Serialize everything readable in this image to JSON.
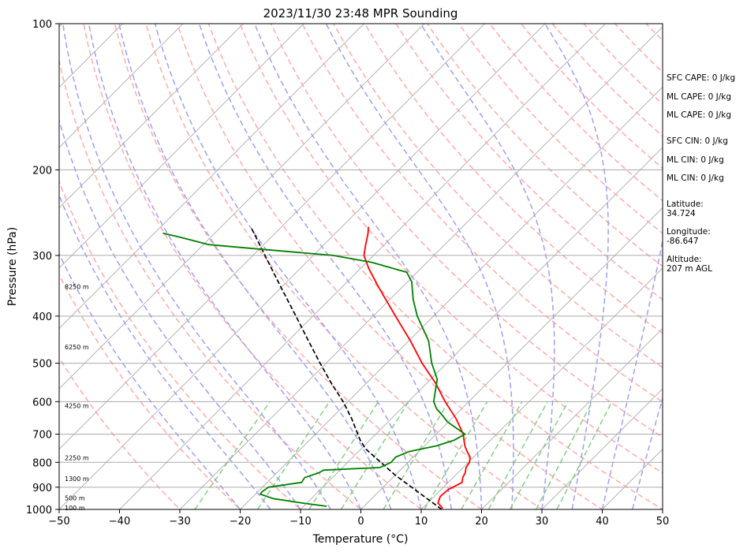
{
  "chart_data": {
    "type": "line",
    "title": "2023/11/30 23:48 MPR Sounding",
    "xlabel": "Temperature (°C)",
    "ylabel": "Pressure (hPa)",
    "xlim": [
      -50,
      50
    ],
    "ylim": [
      1000,
      100
    ],
    "y_scale": "log",
    "x_ticks": [
      "−50",
      "−40",
      "−30",
      "−20",
      "−10",
      "0",
      "10",
      "20",
      "30",
      "40",
      "50"
    ],
    "y_ticks": [
      "100",
      "200",
      "300",
      "400",
      "500",
      "600",
      "700",
      "800",
      "900",
      "1000"
    ],
    "grid": "horizontal isobars + skewed isotherms",
    "colors": {
      "temperature": "#ff0000",
      "dewpoint": "#008000",
      "parcel": "#000000",
      "dry_adiabats": "#ffaaaa",
      "moist_adiabats": "#9f9ff0",
      "mixing_ratio": "#88cc88",
      "isotherms": "#aaaaaa"
    },
    "series": [
      {
        "key": "temperature",
        "pressure": [
          995,
          970,
          940,
          910,
          880,
          860,
          840,
          820,
          800,
          780,
          760,
          740,
          720,
          700,
          650,
          600,
          550,
          500,
          450,
          400,
          350,
          320,
          300,
          285,
          270,
          262
        ],
        "values": [
          13.4,
          11.7,
          11.0,
          11.2,
          12.3,
          11.6,
          11.2,
          10.5,
          10.2,
          9.4,
          8.0,
          6.7,
          5.6,
          4.5,
          0.7,
          -3.9,
          -8.5,
          -14.1,
          -19.7,
          -26.3,
          -33.7,
          -38.5,
          -41.6,
          -43.1,
          -44.6,
          -45.6
        ]
      },
      {
        "key": "dewpoint",
        "pressure": [
          985,
          970,
          950,
          930,
          920,
          900,
          880,
          860,
          840,
          830,
          820,
          800,
          780,
          760,
          740,
          720,
          700,
          680,
          660,
          640,
          620,
          600,
          570,
          540,
          500,
          450,
          400,
          370,
          340,
          325,
          310,
          300,
          290,
          285,
          275,
          270
        ],
        "values": [
          -6.2,
          -10.8,
          -16.3,
          -19.2,
          -19.3,
          -19.0,
          -14.3,
          -14.6,
          -13.0,
          -12.7,
          -3.8,
          -2.8,
          -2.9,
          -1.6,
          2.0,
          4.0,
          4.8,
          2.3,
          -0.2,
          -2.1,
          -4.2,
          -5.8,
          -7.3,
          -8.9,
          -12.5,
          -16.7,
          -22.7,
          -26.1,
          -29.3,
          -31.7,
          -39.1,
          -46.7,
          -61.7,
          -69.1,
          -75.2,
          -78.6
        ]
      },
      {
        "key": "parcel",
        "pressure": [
          1000,
          850,
          750,
          720,
          650,
          600,
          550,
          500,
          450,
          400,
          350,
          300,
          270,
          262
        ],
        "values": [
          13.4,
          0.0,
          -9.3,
          -11.6,
          -16.6,
          -20.8,
          -25.8,
          -31.0,
          -36.6,
          -42.8,
          -49.9,
          -58.0,
          -63.5,
          -65.1
        ]
      }
    ],
    "height_labels": [
      {
        "text": "100 m",
        "p": 992
      },
      {
        "text": "500 m",
        "p": 948
      },
      {
        "text": "1300 m",
        "p": 865
      },
      {
        "text": "2250 m",
        "p": 783
      },
      {
        "text": "4250 m",
        "p": 612
      },
      {
        "text": "6250 m",
        "p": 463
      },
      {
        "text": "8250 m",
        "p": 348
      }
    ],
    "annotations": [
      "SFC CAPE: 0 J/kg",
      "ML CAPE: 0 J/kg",
      "ML CAPE: 0 J/kg",
      "SFC CIN: 0 J/kg",
      "ML CIN: 0 J/kg",
      "ML CIN: 0 J/kg",
      "Latitude:",
      "34.724",
      "Longitude:",
      "-86.647",
      "Altitude:",
      "207 m AGL"
    ]
  }
}
